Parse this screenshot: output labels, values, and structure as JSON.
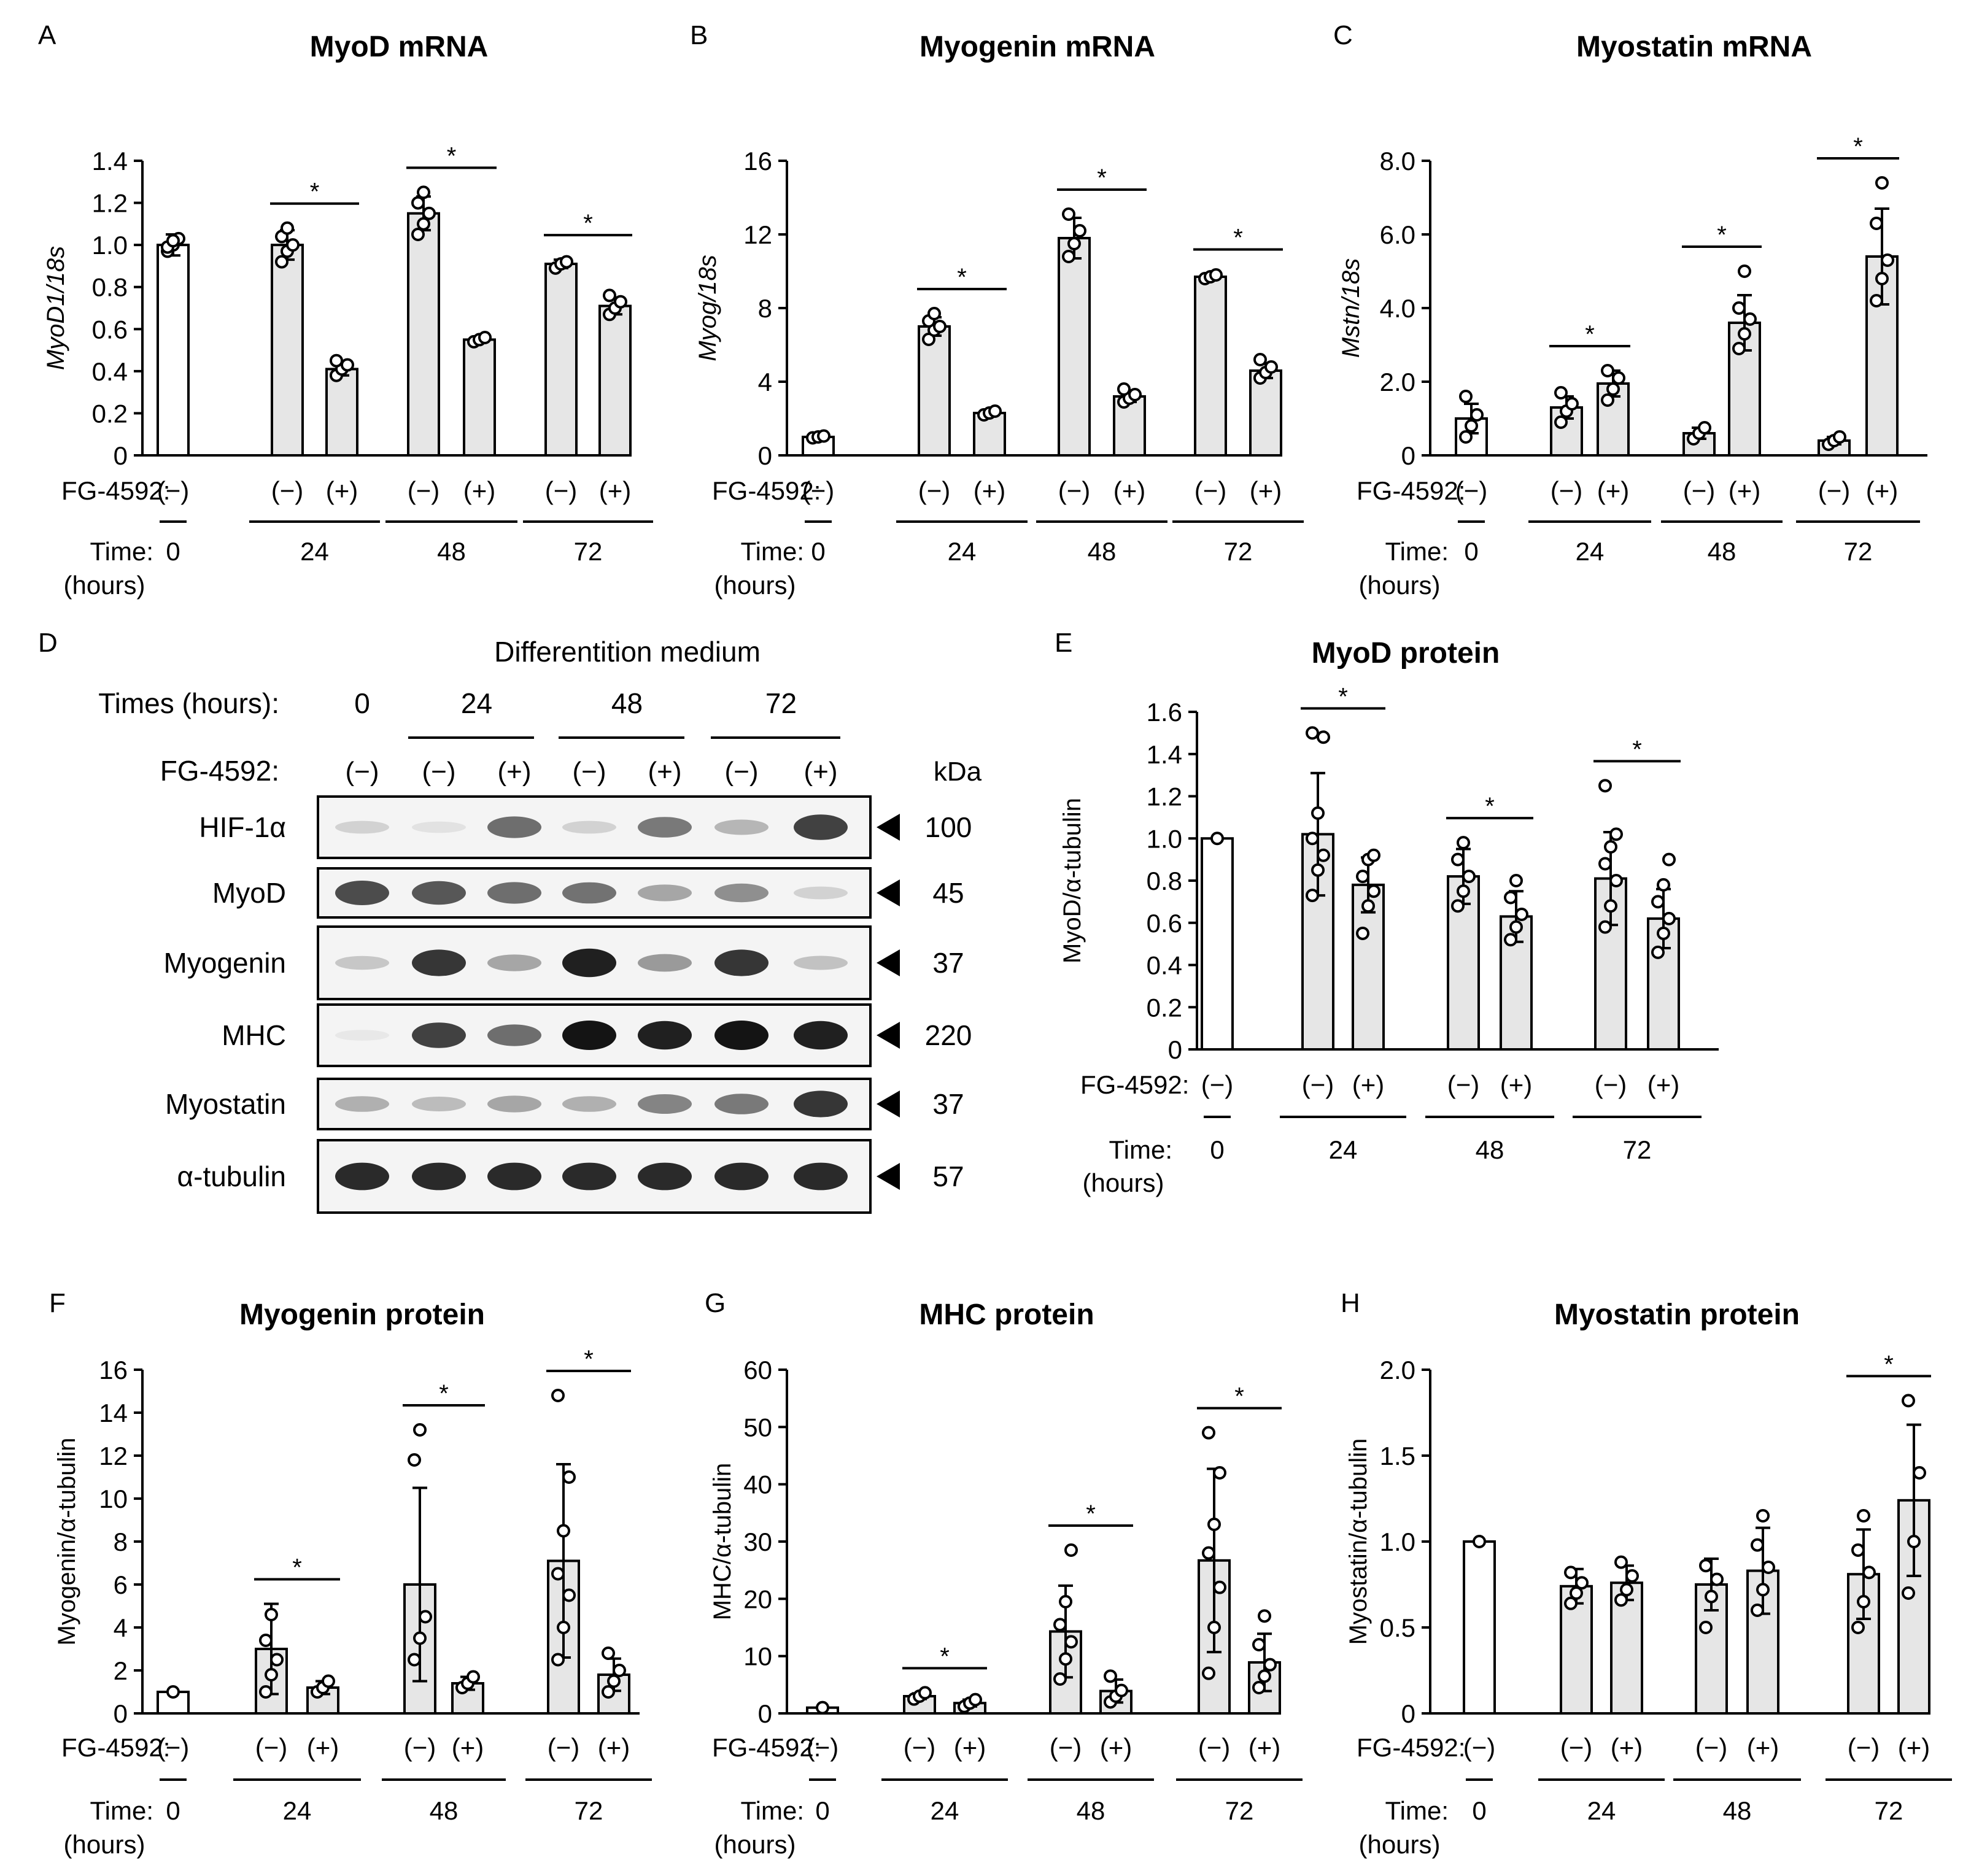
{
  "colors": {
    "bar_fill": "#e6e6e6",
    "bar_fill_baseline": "#ffffff",
    "stroke": "#000000",
    "blot_background": "#f4f4f4",
    "band": "#141414"
  },
  "labels": {
    "fg_label": "FG-4592:",
    "time_label": "Time:",
    "hours_label": "(hours)",
    "minus": "(−)",
    "plus": "(+)",
    "star": "*"
  },
  "chart_data": [
    {
      "type": "bar",
      "panel_letter": "A",
      "title": "MyoD mRNA",
      "ylabel": "MyoD1/18s",
      "ylabel_italic": true,
      "ylim": [
        0,
        1.4
      ],
      "yticks": [
        "0",
        "0.2",
        "0.4",
        "0.6",
        "0.8",
        "1.0",
        "1.2",
        "1.4"
      ],
      "times": [
        "0",
        "24",
        "48",
        "72"
      ],
      "bars": [
        {
          "time": "0",
          "fg": "(−)",
          "value": 1.0,
          "err": 0.05,
          "points": [
            0.97,
            1.0,
            1.03,
            0.99,
            1.02
          ]
        },
        {
          "time": "24",
          "fg": "(−)",
          "value": 1.0,
          "err": 0.07,
          "points": [
            0.92,
            0.97,
            1.0,
            1.04,
            1.08
          ]
        },
        {
          "time": "24",
          "fg": "(+)",
          "value": 0.41,
          "err": 0.03,
          "points": [
            0.38,
            0.41,
            0.43,
            0.45
          ]
        },
        {
          "time": "48",
          "fg": "(−)",
          "value": 1.15,
          "err": 0.08,
          "points": [
            1.05,
            1.1,
            1.15,
            1.2,
            1.25
          ]
        },
        {
          "time": "48",
          "fg": "(+)",
          "value": 0.55,
          "err": 0.01,
          "points": [
            0.54,
            0.55,
            0.56
          ]
        },
        {
          "time": "72",
          "fg": "(−)",
          "value": 0.91,
          "err": 0.02,
          "points": [
            0.89,
            0.91,
            0.92
          ]
        },
        {
          "time": "72",
          "fg": "(+)",
          "value": 0.71,
          "err": 0.04,
          "points": [
            0.67,
            0.7,
            0.73,
            0.76
          ]
        }
      ],
      "sig": [
        "24",
        "48",
        "72"
      ]
    },
    {
      "type": "bar",
      "panel_letter": "B",
      "title": "Myogenin mRNA",
      "ylabel": "Myog/18s",
      "ylabel_italic": true,
      "ylim": [
        0,
        16
      ],
      "yticks": [
        "0",
        "4",
        "8",
        "12",
        "16"
      ],
      "times": [
        "0",
        "24",
        "48",
        "72"
      ],
      "bars": [
        {
          "time": "0",
          "fg": "(−)",
          "value": 1.0,
          "err": 0.1,
          "points": [
            0.95,
            1.0,
            1.05
          ]
        },
        {
          "time": "24",
          "fg": "(−)",
          "value": 7.0,
          "err": 0.5,
          "points": [
            6.3,
            6.8,
            7.0,
            7.3,
            7.7
          ]
        },
        {
          "time": "24",
          "fg": "(+)",
          "value": 2.3,
          "err": 0.1,
          "points": [
            2.2,
            2.3,
            2.4
          ]
        },
        {
          "time": "48",
          "fg": "(−)",
          "value": 11.8,
          "err": 1.1,
          "points": [
            10.8,
            11.5,
            12.2,
            13.1
          ]
        },
        {
          "time": "48",
          "fg": "(+)",
          "value": 3.2,
          "err": 0.3,
          "points": [
            2.9,
            3.1,
            3.3,
            3.6
          ]
        },
        {
          "time": "72",
          "fg": "(−)",
          "value": 9.7,
          "err": 0.15,
          "points": [
            9.6,
            9.7,
            9.8
          ]
        },
        {
          "time": "72",
          "fg": "(+)",
          "value": 4.6,
          "err": 0.4,
          "points": [
            4.2,
            4.5,
            4.8,
            5.2
          ]
        }
      ],
      "sig": [
        "24",
        "48",
        "72"
      ]
    },
    {
      "type": "bar",
      "panel_letter": "C",
      "title": "Myostatin mRNA",
      "ylabel": "Mstn/18s",
      "ylabel_italic": true,
      "ylim": [
        0,
        8
      ],
      "yticks": [
        "0",
        "2.0",
        "4.0",
        "6.0",
        "8.0"
      ],
      "times": [
        "0",
        "24",
        "48",
        "72"
      ],
      "bars": [
        {
          "time": "0",
          "fg": "(−)",
          "value": 1.0,
          "err": 0.4,
          "points": [
            0.5,
            0.8,
            1.1,
            1.6
          ]
        },
        {
          "time": "24",
          "fg": "(−)",
          "value": 1.3,
          "err": 0.3,
          "points": [
            0.9,
            1.2,
            1.4,
            1.7
          ]
        },
        {
          "time": "24",
          "fg": "(+)",
          "value": 1.95,
          "err": 0.35,
          "points": [
            1.5,
            1.8,
            2.1,
            2.3
          ]
        },
        {
          "time": "48",
          "fg": "(−)",
          "value": 0.6,
          "err": 0.15,
          "points": [
            0.45,
            0.6,
            0.75
          ]
        },
        {
          "time": "48",
          "fg": "(+)",
          "value": 3.6,
          "err": 0.75,
          "points": [
            2.9,
            3.3,
            3.7,
            4.0,
            5.0
          ]
        },
        {
          "time": "72",
          "fg": "(−)",
          "value": 0.4,
          "err": 0.1,
          "points": [
            0.3,
            0.4,
            0.5
          ]
        },
        {
          "time": "72",
          "fg": "(+)",
          "value": 5.4,
          "err": 1.3,
          "points": [
            4.2,
            4.8,
            5.3,
            6.3,
            7.4
          ]
        }
      ],
      "sig": [
        "24",
        "48",
        "72"
      ]
    },
    {
      "type": "bar",
      "panel_letter": "E",
      "title": "MyoD protein",
      "ylabel": "MyoD/α-tubulin",
      "ylabel_italic": false,
      "ylim": [
        0,
        1.6
      ],
      "yticks": [
        "0",
        "0.2",
        "0.4",
        "0.6",
        "0.8",
        "1.0",
        "1.2",
        "1.4",
        "1.6"
      ],
      "times": [
        "0",
        "24",
        "48",
        "72"
      ],
      "bars": [
        {
          "time": "0",
          "fg": "(−)",
          "value": 1.0,
          "err": 0.0,
          "points": [
            1.0
          ]
        },
        {
          "time": "24",
          "fg": "(−)",
          "value": 1.02,
          "err": 0.29,
          "points": [
            0.73,
            0.85,
            0.92,
            1.0,
            1.12,
            1.48,
            1.5
          ]
        },
        {
          "time": "24",
          "fg": "(+)",
          "value": 0.78,
          "err": 0.13,
          "points": [
            0.55,
            0.68,
            0.75,
            0.82,
            0.9,
            0.92
          ]
        },
        {
          "time": "48",
          "fg": "(−)",
          "value": 0.82,
          "err": 0.13,
          "points": [
            0.68,
            0.75,
            0.82,
            0.9,
            0.98
          ]
        },
        {
          "time": "48",
          "fg": "(+)",
          "value": 0.63,
          "err": 0.12,
          "points": [
            0.52,
            0.58,
            0.64,
            0.72,
            0.8
          ]
        },
        {
          "time": "72",
          "fg": "(−)",
          "value": 0.81,
          "err": 0.22,
          "points": [
            0.58,
            0.68,
            0.8,
            0.88,
            0.96,
            1.02,
            1.25
          ]
        },
        {
          "time": "72",
          "fg": "(+)",
          "value": 0.62,
          "err": 0.14,
          "points": [
            0.46,
            0.55,
            0.62,
            0.7,
            0.78,
            0.9
          ]
        }
      ],
      "sig": [
        "24",
        "48",
        "72"
      ]
    },
    {
      "type": "bar",
      "panel_letter": "F",
      "title": "Myogenin protein",
      "ylabel": "Myogenin/α-tubulin",
      "ylabel_italic": false,
      "ylim": [
        0,
        16
      ],
      "yticks": [
        "0",
        "2",
        "4",
        "6",
        "8",
        "10",
        "12",
        "14",
        "16"
      ],
      "times": [
        "0",
        "24",
        "48",
        "72"
      ],
      "bars": [
        {
          "time": "0",
          "fg": "(−)",
          "value": 1.0,
          "err": 0.0,
          "points": [
            1.0
          ]
        },
        {
          "time": "24",
          "fg": "(−)",
          "value": 3.0,
          "err": 2.1,
          "points": [
            1.0,
            1.8,
            2.5,
            3.4,
            4.6
          ]
        },
        {
          "time": "24",
          "fg": "(+)",
          "value": 1.2,
          "err": 0.3,
          "points": [
            1.0,
            1.2,
            1.5
          ]
        },
        {
          "time": "48",
          "fg": "(−)",
          "value": 6.0,
          "err": 4.5,
          "points": [
            2.5,
            3.5,
            4.5,
            11.8,
            13.2
          ]
        },
        {
          "time": "48",
          "fg": "(+)",
          "value": 1.4,
          "err": 0.3,
          "points": [
            1.2,
            1.4,
            1.7
          ]
        },
        {
          "time": "72",
          "fg": "(−)",
          "value": 7.1,
          "err": 4.5,
          "points": [
            2.5,
            4.0,
            5.5,
            6.5,
            8.5,
            11.0,
            14.8
          ]
        },
        {
          "time": "72",
          "fg": "(+)",
          "value": 1.8,
          "err": 0.75,
          "points": [
            1.0,
            1.5,
            2.0,
            2.8
          ]
        }
      ],
      "sig": [
        "24",
        "48",
        "72"
      ]
    },
    {
      "type": "bar",
      "panel_letter": "G",
      "title": "MHC protein",
      "ylabel": "MHC/α-tubulin",
      "ylabel_italic": false,
      "ylim": [
        0,
        60
      ],
      "yticks": [
        "0",
        "10",
        "20",
        "30",
        "40",
        "50",
        "60"
      ],
      "times": [
        "0",
        "24",
        "48",
        "72"
      ],
      "bars": [
        {
          "time": "0",
          "fg": "(−)",
          "value": 1.0,
          "err": 0.0,
          "points": [
            1.0
          ]
        },
        {
          "time": "24",
          "fg": "(−)",
          "value": 3.0,
          "err": 0.5,
          "points": [
            2.5,
            3.0,
            3.6
          ]
        },
        {
          "time": "24",
          "fg": "(+)",
          "value": 1.8,
          "err": 0.6,
          "points": [
            1.2,
            1.8,
            2.4
          ]
        },
        {
          "time": "48",
          "fg": "(−)",
          "value": 14.3,
          "err": 8.0,
          "points": [
            6.0,
            9.5,
            12.5,
            15.5,
            19.5,
            28.5
          ]
        },
        {
          "time": "48",
          "fg": "(+)",
          "value": 3.9,
          "err": 2.0,
          "points": [
            2.0,
            3.0,
            4.0,
            6.5
          ]
        },
        {
          "time": "72",
          "fg": "(−)",
          "value": 26.7,
          "err": 16.0,
          "points": [
            7.0,
            15.0,
            22.0,
            28.0,
            33.0,
            42.0,
            49.0
          ]
        },
        {
          "time": "72",
          "fg": "(+)",
          "value": 8.9,
          "err": 5.0,
          "points": [
            4.5,
            6.5,
            8.5,
            12.0,
            17.0
          ]
        }
      ],
      "sig": [
        "24",
        "48",
        "72"
      ]
    },
    {
      "type": "bar",
      "panel_letter": "H",
      "title": "Myostatin protein",
      "ylabel": "Myostatin/α-tubulin",
      "ylabel_italic": false,
      "ylim": [
        0,
        2.0
      ],
      "yticks": [
        "0",
        "0.5",
        "1.0",
        "1.5",
        "2.0"
      ],
      "times": [
        "0",
        "24",
        "48",
        "72"
      ],
      "bars": [
        {
          "time": "0",
          "fg": "(−)",
          "value": 1.0,
          "err": 0.0,
          "points": [
            1.0
          ]
        },
        {
          "time": "24",
          "fg": "(−)",
          "value": 0.74,
          "err": 0.1,
          "points": [
            0.64,
            0.7,
            0.76,
            0.82
          ]
        },
        {
          "time": "24",
          "fg": "(+)",
          "value": 0.76,
          "err": 0.1,
          "points": [
            0.66,
            0.72,
            0.8,
            0.88
          ]
        },
        {
          "time": "48",
          "fg": "(−)",
          "value": 0.75,
          "err": 0.15,
          "points": [
            0.5,
            0.68,
            0.78,
            0.86
          ]
        },
        {
          "time": "48",
          "fg": "(+)",
          "value": 0.83,
          "err": 0.25,
          "points": [
            0.6,
            0.72,
            0.85,
            0.98,
            1.15
          ]
        },
        {
          "time": "72",
          "fg": "(−)",
          "value": 0.81,
          "err": 0.26,
          "points": [
            0.5,
            0.65,
            0.82,
            0.95,
            1.15
          ]
        },
        {
          "time": "72",
          "fg": "(+)",
          "value": 1.24,
          "err": 0.44,
          "points": [
            0.7,
            1.0,
            1.4,
            1.82
          ]
        }
      ],
      "sig": [
        "72"
      ]
    }
  ],
  "blot": {
    "panel_letter": "D",
    "heading": "Differentition medium",
    "times_label": "Times (hours):",
    "fg_label": "FG-4592:",
    "times": [
      "0",
      "24",
      "48",
      "72"
    ],
    "lanes": [
      "(−)",
      "(−)",
      "(+)",
      "(−)",
      "(+)",
      "(−)",
      "(+)"
    ],
    "kda_label": "kDa",
    "rows": [
      {
        "name": "HIF-1α",
        "kda": "100",
        "intensity": [
          0.15,
          0.08,
          0.6,
          0.15,
          0.55,
          0.28,
          0.8
        ]
      },
      {
        "name": "MyoD",
        "kda": "45",
        "intensity": [
          0.75,
          0.7,
          0.6,
          0.58,
          0.35,
          0.45,
          0.15
        ]
      },
      {
        "name": "Myogenin",
        "kda": "37",
        "intensity": [
          0.2,
          0.85,
          0.35,
          0.95,
          0.4,
          0.85,
          0.22
        ]
      },
      {
        "name": "MHC",
        "kda": "220",
        "intensity": [
          0.05,
          0.8,
          0.6,
          1.0,
          0.95,
          1.0,
          0.95
        ]
      },
      {
        "name": "Myostatin",
        "kda": "37",
        "intensity": [
          0.3,
          0.25,
          0.35,
          0.3,
          0.5,
          0.55,
          0.85
        ]
      },
      {
        "name": "α-tubulin",
        "kda": "57",
        "intensity": [
          0.9,
          0.9,
          0.9,
          0.9,
          0.9,
          0.9,
          0.9
        ]
      }
    ]
  }
}
